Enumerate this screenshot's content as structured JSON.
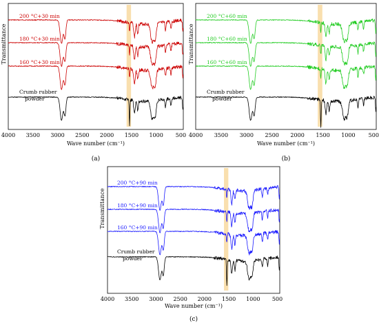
{
  "figure": {
    "panel_labels": [
      "(a)",
      "(b)",
      "(c)"
    ]
  },
  "chart_data": [
    {
      "type": "line",
      "panel": "(a)",
      "xlabel": "Wave number (cm⁻¹)",
      "ylabel": "Transmittance",
      "xlim": [
        4000,
        450
      ],
      "x_reversed": true,
      "xticks": [
        4000,
        3500,
        3000,
        2500,
        2000,
        1500,
        1000,
        500
      ],
      "highlight_band_cm": [
        1510,
        1600
      ],
      "series_color": "#cc0000",
      "reference_color": "#000000",
      "series": [
        {
          "name": "200 °C+30 min",
          "color": "#cc0000"
        },
        {
          "name": "180 °C+30 min",
          "color": "#cc0000"
        },
        {
          "name": "160 °C+30 min",
          "color": "#cc0000"
        },
        {
          "name": "Crumb rubber powder",
          "color": "#000000"
        }
      ],
      "peaks_cm": [
        2920,
        2850,
        1540,
        1440,
        1375,
        1080,
        1020,
        810,
        700,
        460
      ]
    },
    {
      "type": "line",
      "panel": "(b)",
      "xlabel": "Wave number (cm⁻¹)",
      "ylabel": "Transmittance",
      "xlim": [
        4000,
        450
      ],
      "x_reversed": true,
      "xticks": [
        4000,
        3500,
        3000,
        2500,
        2000,
        1500,
        1000,
        500
      ],
      "highlight_band_cm": [
        1510,
        1600
      ],
      "series_color": "#22cc22",
      "reference_color": "#000000",
      "series": [
        {
          "name": "200 °C+60 min",
          "color": "#22cc22"
        },
        {
          "name": "180 °C+60 min",
          "color": "#22cc22"
        },
        {
          "name": "160 °C+60 min",
          "color": "#22cc22"
        },
        {
          "name": "Crumb rubber powder",
          "color": "#000000"
        }
      ],
      "peaks_cm": [
        2920,
        2850,
        1540,
        1440,
        1375,
        1080,
        1020,
        810,
        700,
        460
      ]
    },
    {
      "type": "line",
      "panel": "(c)",
      "xlabel": "Wave number (cm⁻¹)",
      "ylabel": "Transmittance",
      "xlim": [
        4000,
        450
      ],
      "x_reversed": true,
      "xticks": [
        4000,
        3500,
        3000,
        2500,
        2000,
        1500,
        1000,
        500
      ],
      "highlight_band_cm": [
        1510,
        1600
      ],
      "series_color": "#1a1aff",
      "reference_color": "#000000",
      "series": [
        {
          "name": "200 °C+90 min",
          "color": "#1a1aff"
        },
        {
          "name": "180 °C+90 min",
          "color": "#1a1aff"
        },
        {
          "name": "160 °C+90 min",
          "color": "#1a1aff"
        },
        {
          "name": "Crumb rubber powder",
          "color": "#000000"
        }
      ],
      "peaks_cm": [
        2920,
        2850,
        1540,
        1440,
        1375,
        1080,
        1020,
        810,
        700,
        460
      ]
    }
  ]
}
